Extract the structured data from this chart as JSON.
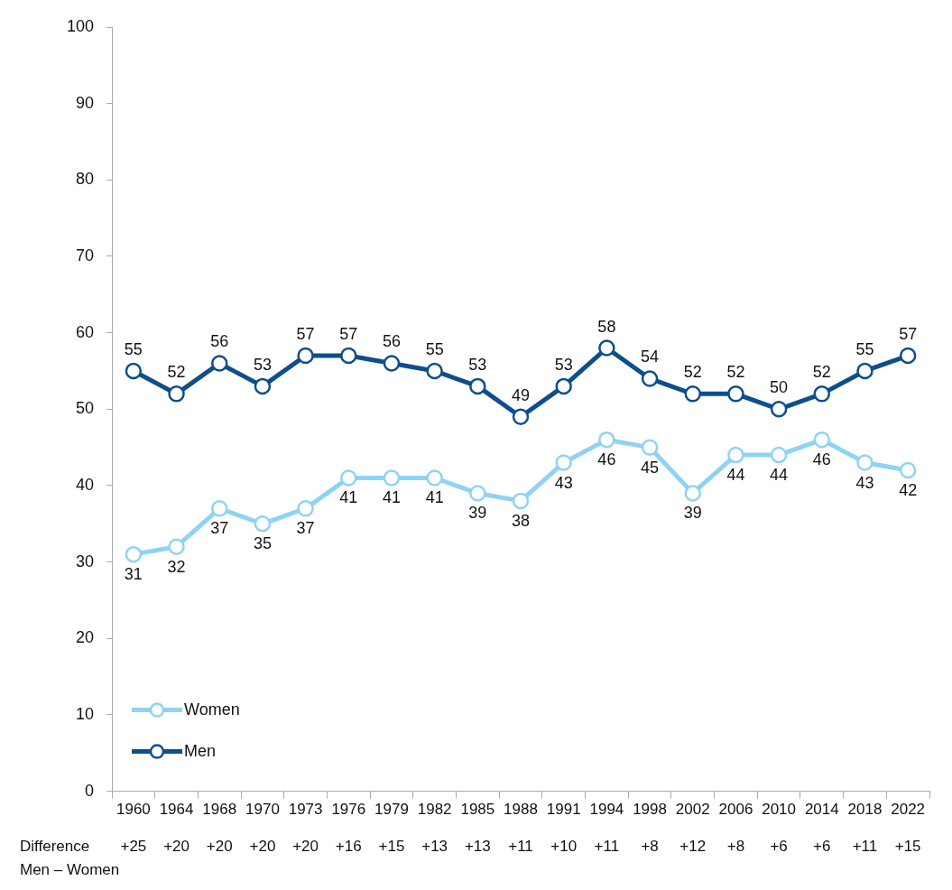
{
  "chart_data": {
    "type": "line",
    "categories": [
      "1960",
      "1964",
      "1968",
      "1970",
      "1973",
      "1976",
      "1979",
      "1982",
      "1985",
      "1988",
      "1991",
      "1994",
      "1998",
      "2002",
      "2006",
      "2010",
      "2014",
      "2018",
      "2022"
    ],
    "series": [
      {
        "name": "Women",
        "color": "#8fd3f4",
        "values": [
          31,
          32,
          37,
          35,
          37,
          41,
          41,
          41,
          39,
          38,
          43,
          46,
          45,
          39,
          44,
          44,
          46,
          43,
          42
        ]
      },
      {
        "name": "Men",
        "color": "#0d4f8b",
        "values": [
          55,
          52,
          56,
          53,
          57,
          57,
          56,
          55,
          53,
          49,
          53,
          58,
          54,
          52,
          52,
          50,
          52,
          55,
          57
        ]
      }
    ],
    "ylim": [
      0,
      100
    ],
    "yticks": [
      0,
      10,
      20,
      30,
      40,
      50,
      60,
      70,
      80,
      90,
      100
    ],
    "grid": false,
    "legend": "bottom left",
    "marker": "circle",
    "line_style": "solid",
    "data_labels": true,
    "annotations": [
      "Difference\nMen – Women",
      "+25",
      "+20",
      "+20",
      "+20",
      "+20",
      "+16",
      "+15",
      "+13",
      "+13",
      "+11",
      "+10",
      "+11",
      "+8",
      "+12",
      "+8",
      "+6",
      "+6",
      "+11",
      "+15"
    ]
  }
}
